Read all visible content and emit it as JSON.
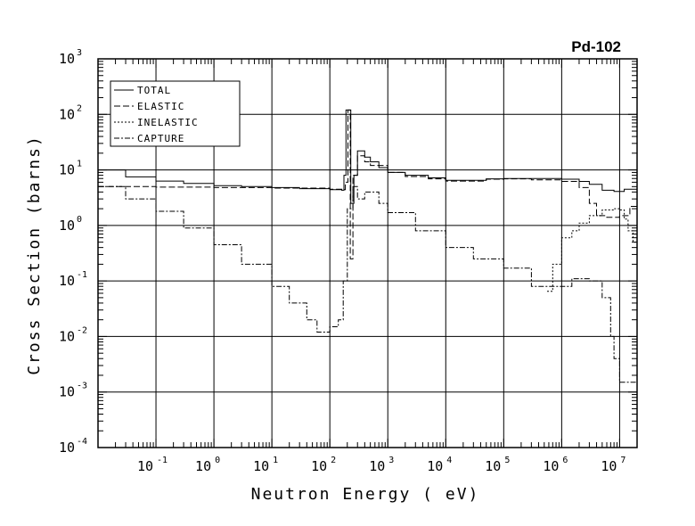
{
  "chart_data": {
    "type": "line",
    "title": "Pd-102",
    "xlabel": "Neutron Energy ( eV)",
    "ylabel": "Cross Section (barns)",
    "xscale": "log",
    "yscale": "log",
    "xlim": [
      0.01,
      20000000
    ],
    "ylim": [
      0.0001,
      1000
    ],
    "grid": true,
    "legend_position": "top-left",
    "x_ticks": [
      {
        "base": "10",
        "exp": "-1",
        "value": 0.1
      },
      {
        "base": "10",
        "exp": "0",
        "value": 1
      },
      {
        "base": "10",
        "exp": "1",
        "value": 10
      },
      {
        "base": "10",
        "exp": "2",
        "value": 100
      },
      {
        "base": "10",
        "exp": "3",
        "value": 1000
      },
      {
        "base": "10",
        "exp": "4",
        "value": 10000
      },
      {
        "base": "10",
        "exp": "5",
        "value": 100000
      },
      {
        "base": "10",
        "exp": "6",
        "value": 1000000
      },
      {
        "base": "10",
        "exp": "7",
        "value": 10000000
      }
    ],
    "y_ticks": [
      {
        "base": "10",
        "exp": "-4",
        "value": 0.0001
      },
      {
        "base": "10",
        "exp": "-3",
        "value": 0.001
      },
      {
        "base": "10",
        "exp": "-2",
        "value": 0.01
      },
      {
        "base": "10",
        "exp": "-1",
        "value": 0.1
      },
      {
        "base": "10",
        "exp": "0",
        "value": 1
      },
      {
        "base": "10",
        "exp": "1",
        "value": 10
      },
      {
        "base": "10",
        "exp": "2",
        "value": 100
      },
      {
        "base": "10",
        "exp": "3",
        "value": 1000
      }
    ],
    "series": [
      {
        "name": "TOTAL",
        "dash": "solid",
        "x": [
          0.01,
          0.03,
          0.1,
          0.3,
          1,
          3,
          10,
          30,
          100,
          150,
          160,
          175,
          190,
          205,
          230,
          260,
          300,
          400,
          500,
          700,
          1000,
          2000,
          5000,
          10000,
          50000,
          100000,
          300000,
          1000000,
          2000000,
          3000000,
          5000000,
          8000000,
          12000000,
          20000000
        ],
        "y": [
          10,
          7.5,
          6.3,
          5.7,
          5.2,
          5,
          4.8,
          4.6,
          4.4,
          4.4,
          4.3,
          8,
          120,
          120,
          2.5,
          8,
          22,
          17,
          14,
          11,
          9,
          8,
          7.2,
          6.5,
          6.9,
          7,
          7,
          6.8,
          6.2,
          5.5,
          4.3,
          4.1,
          4.5,
          3.8
        ]
      },
      {
        "name": "ELASTIC",
        "dash": "long-dash",
        "x": [
          0.01,
          0.1,
          1,
          10,
          100,
          150,
          165,
          185,
          205,
          225,
          250,
          300,
          400,
          500,
          1000,
          2000,
          5000,
          10000,
          50000,
          100000,
          300000,
          1000000,
          2000000,
          3000000,
          4000000,
          6000000,
          10000000,
          15000000,
          20000000
        ],
        "y": [
          5,
          4.9,
          4.8,
          4.7,
          4.5,
          4.5,
          4.4,
          6,
          120,
          0.25,
          8,
          18,
          14,
          12,
          9,
          7.6,
          6.9,
          6.3,
          6.8,
          6.9,
          6.6,
          6.2,
          4.8,
          2.5,
          1.5,
          1.4,
          1.5,
          2.2,
          2.5
        ]
      },
      {
        "name": "INELASTIC",
        "dash": "short-dash",
        "x": [
          560000,
          600000,
          700000,
          1000000,
          1500000,
          2000000,
          3000000,
          5000000,
          8000000,
          10000000,
          12000000,
          14000000,
          17000000,
          20000000
        ],
        "y": [
          0.065,
          0.065,
          0.2,
          0.6,
          0.8,
          1.1,
          1.5,
          1.9,
          2,
          1.9,
          1.3,
          0.8,
          0.5,
          0.3
        ]
      },
      {
        "name": "CAPTURE",
        "dash": "dash-dot",
        "x": [
          0.01,
          0.03,
          0.1,
          0.3,
          1,
          3,
          10,
          20,
          40,
          60,
          100,
          140,
          170,
          200,
          250,
          300,
          400,
          700,
          1000,
          3000,
          10000,
          30000,
          100000,
          300000,
          500000,
          1000000,
          1500000,
          2000000,
          3000000,
          5000000,
          7000000,
          8000000,
          10000000,
          20000000
        ],
        "y": [
          5,
          3,
          1.8,
          0.9,
          0.45,
          0.2,
          0.08,
          0.04,
          0.02,
          0.012,
          0.015,
          0.02,
          0.1,
          2,
          5,
          3,
          4,
          2.5,
          1.7,
          0.8,
          0.4,
          0.25,
          0.17,
          0.08,
          0.08,
          0.08,
          0.11,
          0.11,
          0.1,
          0.05,
          0.01,
          0.004,
          0.0015,
          0.0012
        ]
      }
    ]
  }
}
